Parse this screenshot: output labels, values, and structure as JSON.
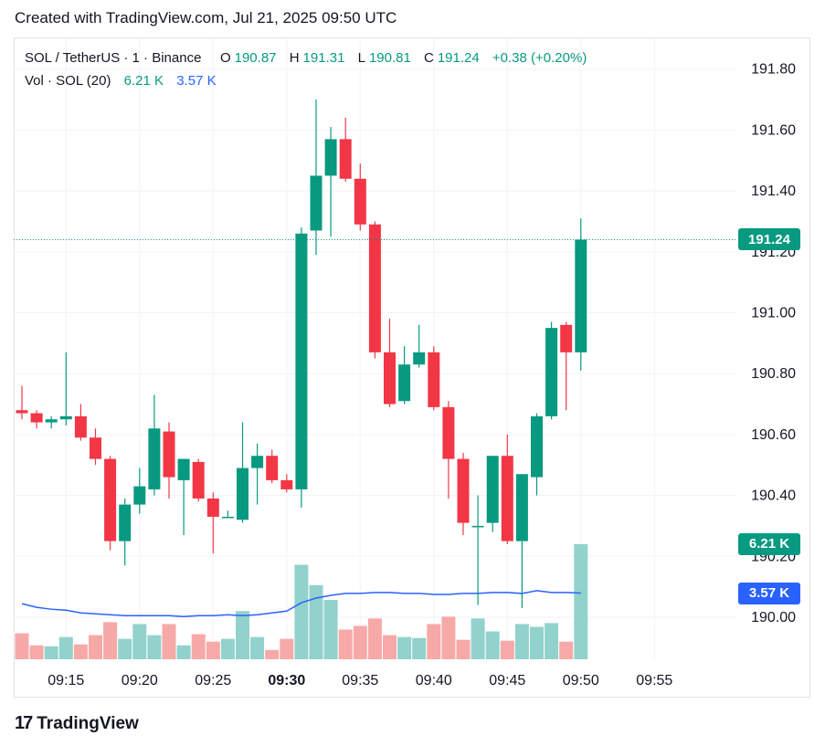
{
  "header": {
    "created_text": "Created with TradingView.com, Jul 21, 2025 09:50 UTC"
  },
  "legend": {
    "symbol": "SOL / TetherUS · 1 · Binance",
    "o_label": "O",
    "o_value": "190.87",
    "h_label": "H",
    "h_value": "191.31",
    "l_label": "L",
    "l_value": "190.81",
    "c_label": "C",
    "c_value": "191.24",
    "change": "+0.38 (+0.20%)",
    "vol_label": "Vol · SOL (20)",
    "vol_value": "6.21 K",
    "vol_ma_value": "3.57 K"
  },
  "price_tag": "191.24",
  "volume_tag": "6.21 K",
  "volume_ma_tag": "3.57 K",
  "footer": {
    "brand": "TradingView",
    "logo_text": "17"
  },
  "colors": {
    "up": "#089981",
    "down": "#f23645",
    "vol_up": "#92d2cc",
    "vol_down": "#f7a9a7",
    "ma": "#2962ff",
    "grid": "#f0f3fa"
  },
  "chart_data": {
    "type": "candlestick",
    "x_ticks": [
      "09:15",
      "09:20",
      "09:25",
      "09:30",
      "09:35",
      "09:40",
      "09:45",
      "09:50",
      "09:55"
    ],
    "y_ticks": [
      "190.00",
      "190.20",
      "190.40",
      "190.60",
      "190.80",
      "191.00",
      "191.20",
      "191.40",
      "191.60",
      "191.80"
    ],
    "ylim": [
      189.87,
      191.95
    ],
    "last_price": 191.24,
    "candles": [
      {
        "t": "09:12",
        "o": 190.68,
        "h": 190.76,
        "l": 190.65,
        "c": 190.67,
        "v": 1.4
      },
      {
        "t": "09:13",
        "o": 190.67,
        "h": 190.68,
        "l": 190.62,
        "c": 190.64,
        "v": 0.75
      },
      {
        "t": "09:14",
        "o": 190.64,
        "h": 190.66,
        "l": 190.62,
        "c": 190.65,
        "v": 0.7
      },
      {
        "t": "09:15",
        "o": 190.65,
        "h": 190.87,
        "l": 190.63,
        "c": 190.66,
        "v": 1.2
      },
      {
        "t": "09:16",
        "o": 190.66,
        "h": 190.7,
        "l": 190.58,
        "c": 190.59,
        "v": 0.8
      },
      {
        "t": "09:17",
        "o": 190.59,
        "h": 190.62,
        "l": 190.5,
        "c": 190.52,
        "v": 1.3
      },
      {
        "t": "09:18",
        "o": 190.52,
        "h": 190.53,
        "l": 190.22,
        "c": 190.25,
        "v": 2.0
      },
      {
        "t": "09:19",
        "o": 190.25,
        "h": 190.39,
        "l": 190.17,
        "c": 190.37,
        "v": 1.1
      },
      {
        "t": "09:20",
        "o": 190.37,
        "h": 190.49,
        "l": 190.34,
        "c": 190.43,
        "v": 1.9
      },
      {
        "t": "09:21",
        "o": 190.42,
        "h": 190.73,
        "l": 190.4,
        "c": 190.62,
        "v": 1.3
      },
      {
        "t": "09:22",
        "o": 190.61,
        "h": 190.64,
        "l": 190.39,
        "c": 190.46,
        "v": 1.9
      },
      {
        "t": "09:23",
        "o": 190.45,
        "h": 190.52,
        "l": 190.27,
        "c": 190.52,
        "v": 0.75
      },
      {
        "t": "09:24",
        "o": 190.51,
        "h": 190.52,
        "l": 190.38,
        "c": 190.39,
        "v": 1.35
      },
      {
        "t": "09:25",
        "o": 190.39,
        "h": 190.41,
        "l": 190.21,
        "c": 190.33,
        "v": 0.95
      },
      {
        "t": "09:26",
        "o": 190.33,
        "h": 190.35,
        "l": 190.33,
        "c": 190.33,
        "v": 1.1
      },
      {
        "t": "09:27",
        "o": 190.32,
        "h": 190.64,
        "l": 190.31,
        "c": 190.49,
        "v": 2.6
      },
      {
        "t": "09:28",
        "o": 190.49,
        "h": 190.57,
        "l": 190.37,
        "c": 190.53,
        "v": 1.2
      },
      {
        "t": "09:29",
        "o": 190.53,
        "h": 190.55,
        "l": 190.44,
        "c": 190.45,
        "v": 0.5
      },
      {
        "t": "09:30",
        "o": 190.45,
        "h": 190.47,
        "l": 190.41,
        "c": 190.42,
        "v": 1.1
      },
      {
        "t": "09:31",
        "o": 190.42,
        "h": 191.28,
        "l": 190.36,
        "c": 191.26,
        "v": 5.1
      },
      {
        "t": "09:32",
        "o": 191.27,
        "h": 191.7,
        "l": 191.19,
        "c": 191.45,
        "v": 4.0
      },
      {
        "t": "09:33",
        "o": 191.45,
        "h": 191.61,
        "l": 191.25,
        "c": 191.57,
        "v": 3.2
      },
      {
        "t": "09:34",
        "o": 191.57,
        "h": 191.64,
        "l": 191.43,
        "c": 191.44,
        "v": 1.6
      },
      {
        "t": "09:35",
        "o": 191.44,
        "h": 191.49,
        "l": 191.27,
        "c": 191.29,
        "v": 1.8
      },
      {
        "t": "09:36",
        "o": 191.29,
        "h": 191.3,
        "l": 190.85,
        "c": 190.87,
        "v": 2.2
      },
      {
        "t": "09:37",
        "o": 190.87,
        "h": 190.98,
        "l": 190.69,
        "c": 190.7,
        "v": 1.3
      },
      {
        "t": "09:38",
        "o": 190.71,
        "h": 190.89,
        "l": 190.7,
        "c": 190.83,
        "v": 1.2
      },
      {
        "t": "09:39",
        "o": 190.83,
        "h": 190.96,
        "l": 190.82,
        "c": 190.87,
        "v": 1.15
      },
      {
        "t": "09:40",
        "o": 190.87,
        "h": 190.89,
        "l": 190.68,
        "c": 190.69,
        "v": 1.9
      },
      {
        "t": "09:41",
        "o": 190.69,
        "h": 190.71,
        "l": 190.39,
        "c": 190.52,
        "v": 2.3
      },
      {
        "t": "09:42",
        "o": 190.52,
        "h": 190.54,
        "l": 190.27,
        "c": 190.31,
        "v": 1.05
      },
      {
        "t": "09:43",
        "o": 190.3,
        "h": 190.4,
        "l": 190.04,
        "c": 190.3,
        "v": 2.2
      },
      {
        "t": "09:44",
        "o": 190.31,
        "h": 190.53,
        "l": 190.28,
        "c": 190.53,
        "v": 1.5
      },
      {
        "t": "09:45",
        "o": 190.53,
        "h": 190.6,
        "l": 190.24,
        "c": 190.25,
        "v": 1.0
      },
      {
        "t": "09:46",
        "o": 190.25,
        "h": 190.47,
        "l": 190.03,
        "c": 190.47,
        "v": 1.9
      },
      {
        "t": "09:47",
        "o": 190.46,
        "h": 190.67,
        "l": 190.4,
        "c": 190.66,
        "v": 1.75
      },
      {
        "t": "09:48",
        "o": 190.66,
        "h": 190.97,
        "l": 190.65,
        "c": 190.95,
        "v": 1.95
      },
      {
        "t": "09:49",
        "o": 190.96,
        "h": 190.97,
        "l": 190.68,
        "c": 190.87,
        "v": 0.95
      },
      {
        "t": "09:50",
        "o": 190.87,
        "h": 191.31,
        "l": 190.81,
        "c": 191.24,
        "v": 6.21
      }
    ],
    "volume_ma": [
      3.0,
      2.8,
      2.7,
      2.65,
      2.5,
      2.45,
      2.4,
      2.35,
      2.35,
      2.35,
      2.35,
      2.3,
      2.35,
      2.35,
      2.4,
      2.35,
      2.4,
      2.5,
      2.6,
      3.05,
      3.3,
      3.45,
      3.55,
      3.55,
      3.6,
      3.6,
      3.55,
      3.55,
      3.5,
      3.5,
      3.55,
      3.55,
      3.6,
      3.6,
      3.55,
      3.7,
      3.6,
      3.6,
      3.57
    ],
    "volume_unit": "K"
  }
}
